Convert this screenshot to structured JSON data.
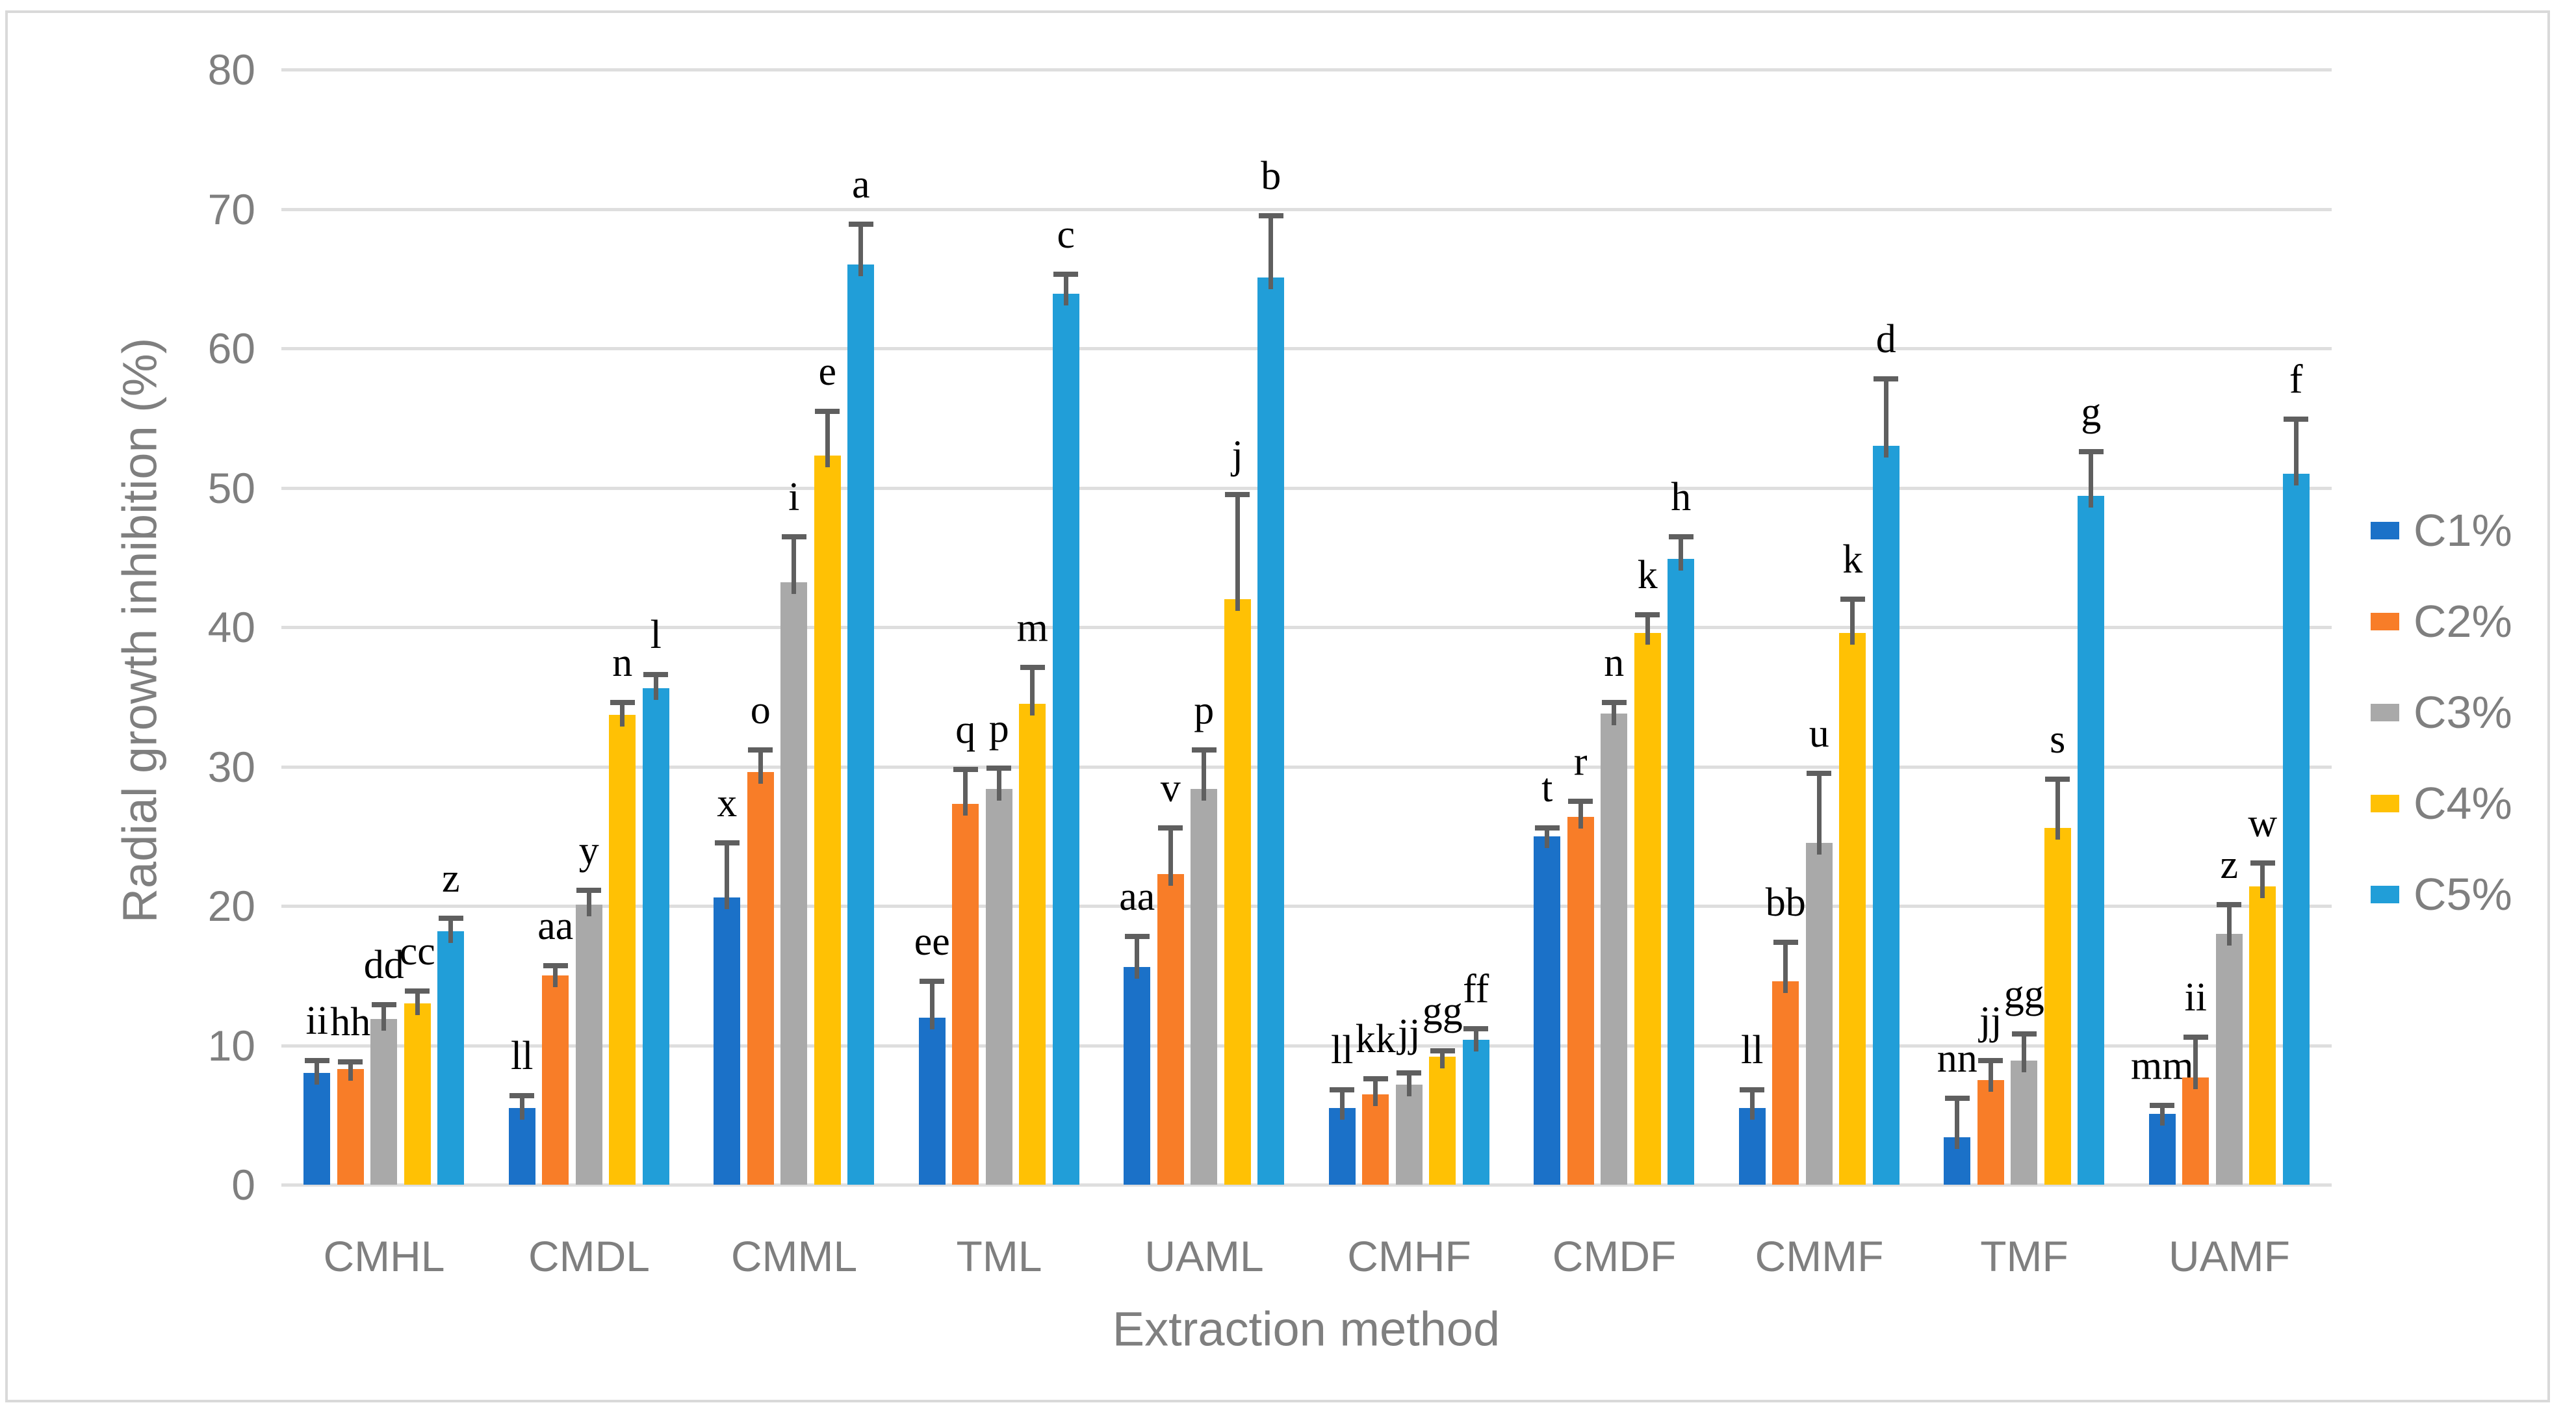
{
  "chart_data": {
    "type": "bar",
    "title": "",
    "xlabel": "Extraction method",
    "ylabel": "Radial growth inhibition (%)",
    "ylim": [
      0,
      80
    ],
    "ytick_interval": 10,
    "yticks": [
      0,
      10,
      20,
      30,
      40,
      50,
      60,
      70,
      80
    ],
    "grid": true,
    "legend_position": "right",
    "error_bars": "upper",
    "categories": [
      "CMHL",
      "CMDL",
      "CMML",
      "TML",
      "UAML",
      "CMHF",
      "CMDF",
      "CMMF",
      "TMF",
      "UAMF"
    ],
    "series": [
      {
        "name": "C1%",
        "color": "#1B71C8",
        "values": [
          8.0,
          5.5,
          20.6,
          12.0,
          15.6,
          5.5,
          25.0,
          5.5,
          3.4,
          5.1
        ],
        "errors": [
          0.9,
          0.9,
          3.9,
          2.6,
          2.2,
          1.3,
          0.6,
          1.3,
          2.8,
          0.6
        ],
        "letters": [
          "ii",
          "ll",
          "x",
          "ee",
          "aa",
          "ll",
          "t",
          "ll",
          "nn",
          "mm"
        ]
      },
      {
        "name": "C2%",
        "color": "#F87D28",
        "values": [
          8.3,
          15.0,
          29.6,
          27.3,
          22.3,
          6.5,
          26.4,
          14.6,
          7.5,
          7.7
        ],
        "errors": [
          0.5,
          0.7,
          1.6,
          2.5,
          3.3,
          1.1,
          1.1,
          2.8,
          1.4,
          2.9
        ],
        "letters": [
          "hh",
          "aa",
          "o",
          "q",
          "v",
          "kk",
          "r",
          "bb",
          "jj",
          "ii"
        ]
      },
      {
        "name": "C3%",
        "color": "#A9A9A9",
        "values": [
          11.9,
          20.1,
          43.2,
          28.4,
          28.4,
          7.2,
          33.8,
          24.5,
          8.9,
          18.0
        ],
        "errors": [
          1.0,
          1.0,
          3.3,
          1.5,
          2.8,
          0.8,
          0.8,
          5.0,
          1.9,
          2.1
        ],
        "letters": [
          "dd",
          "y",
          "i",
          "p",
          "p",
          "jj",
          "n",
          "u",
          "gg",
          "z"
        ]
      },
      {
        "name": "C4%",
        "color": "#FFC104",
        "values": [
          13.0,
          33.7,
          52.3,
          34.5,
          42.0,
          9.2,
          39.6,
          39.6,
          25.6,
          21.4
        ],
        "errors": [
          0.9,
          0.9,
          3.2,
          2.6,
          7.5,
          0.4,
          1.3,
          2.4,
          3.5,
          1.7
        ],
        "letters": [
          "cc",
          "n",
          "e",
          "m",
          "j",
          "gg",
          "k",
          "k",
          "s",
          "w"
        ]
      },
      {
        "name": "C5%",
        "color": "#219ED8",
        "values": [
          18.2,
          35.6,
          66.0,
          63.9,
          65.1,
          10.4,
          44.9,
          53.0,
          49.4,
          51.0
        ],
        "errors": [
          0.9,
          1.0,
          2.9,
          1.4,
          4.4,
          0.8,
          1.6,
          4.8,
          3.2,
          3.9
        ],
        "letters": [
          "z",
          "l",
          "a",
          "c",
          "b",
          "ff",
          "h",
          "d",
          "g",
          "f"
        ]
      }
    ]
  },
  "axes": {
    "ylabel": "Radial growth inhibition (%)",
    "xlabel": "Extraction method"
  },
  "legend": {
    "items": [
      {
        "label": "C1%",
        "color": "#1B71C8"
      },
      {
        "label": "C2%",
        "color": "#F87D28"
      },
      {
        "label": "C3%",
        "color": "#A9A9A9"
      },
      {
        "label": "C4%",
        "color": "#FFC104"
      },
      {
        "label": "C5%",
        "color": "#219ED8"
      }
    ]
  },
  "colors": {
    "background": "#FFFFFF",
    "figure_border": "#D9D9D9",
    "gridline": "#DEDEDE",
    "axis_text": "#7F7F7F",
    "error_bar": "#5F5F5F",
    "significance_letter": "#000000"
  }
}
